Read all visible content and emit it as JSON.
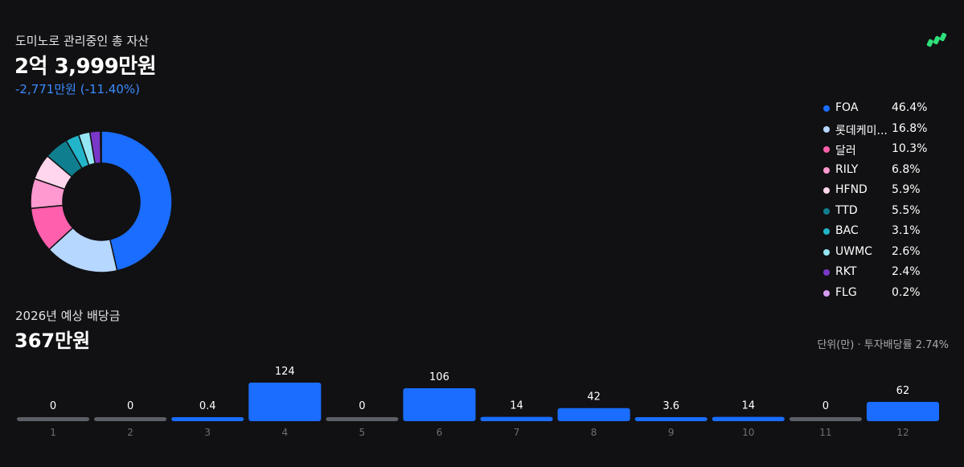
{
  "header": {
    "total_label": "도미노로 관리중인 총 자산",
    "total_value": "2억 3,999만원",
    "change": "-2,771만원 (-11.40%)",
    "logo_icon": "domino-logo-icon",
    "accent": "#3b8bff"
  },
  "allocation": {
    "items": [
      {
        "name": "FOA",
        "pct_label": "46.4%",
        "value": 46.4,
        "color": "#1a6dff"
      },
      {
        "name": "롯데케미...",
        "pct_label": "16.8%",
        "value": 16.8,
        "color": "#b6d7ff"
      },
      {
        "name": "달러",
        "pct_label": "10.3%",
        "value": 10.3,
        "color": "#ff5fac"
      },
      {
        "name": "RILY",
        "pct_label": "6.8%",
        "value": 6.8,
        "color": "#ff99cf"
      },
      {
        "name": "HFND",
        "pct_label": "5.9%",
        "value": 5.9,
        "color": "#ffd6ec"
      },
      {
        "name": "TTD",
        "pct_label": "5.5%",
        "value": 5.5,
        "color": "#0f7f8f"
      },
      {
        "name": "BAC",
        "pct_label": "3.1%",
        "value": 3.1,
        "color": "#22b5c9"
      },
      {
        "name": "UWMC",
        "pct_label": "2.6%",
        "value": 2.6,
        "color": "#94e6f2"
      },
      {
        "name": "RKT",
        "pct_label": "2.4%",
        "value": 2.4,
        "color": "#7a38c9"
      },
      {
        "name": "FLG",
        "pct_label": "0.2%",
        "value": 0.2,
        "color": "#d79bf2"
      }
    ]
  },
  "dividends": {
    "label": "2026년 예상 배당금",
    "value": "367만원",
    "unit_note": "단위(만) · 투자배당률 2.74%"
  },
  "chart_data": {
    "type": "bar",
    "categories": [
      "1",
      "2",
      "3",
      "4",
      "5",
      "6",
      "7",
      "8",
      "9",
      "10",
      "11",
      "12"
    ],
    "values": [
      0,
      0,
      0.4,
      124,
      0,
      106,
      14,
      42,
      3.6,
      14,
      0,
      62
    ],
    "value_labels": [
      "0",
      "0",
      "0.4",
      "124",
      "0",
      "106",
      "14",
      "42",
      "3.6",
      "14",
      "0",
      "62"
    ],
    "colors": {
      "bar": "#1a6dff",
      "zero_bar": "#5c5f66",
      "label": "#ffffff",
      "tick": "#6e6f75"
    }
  }
}
